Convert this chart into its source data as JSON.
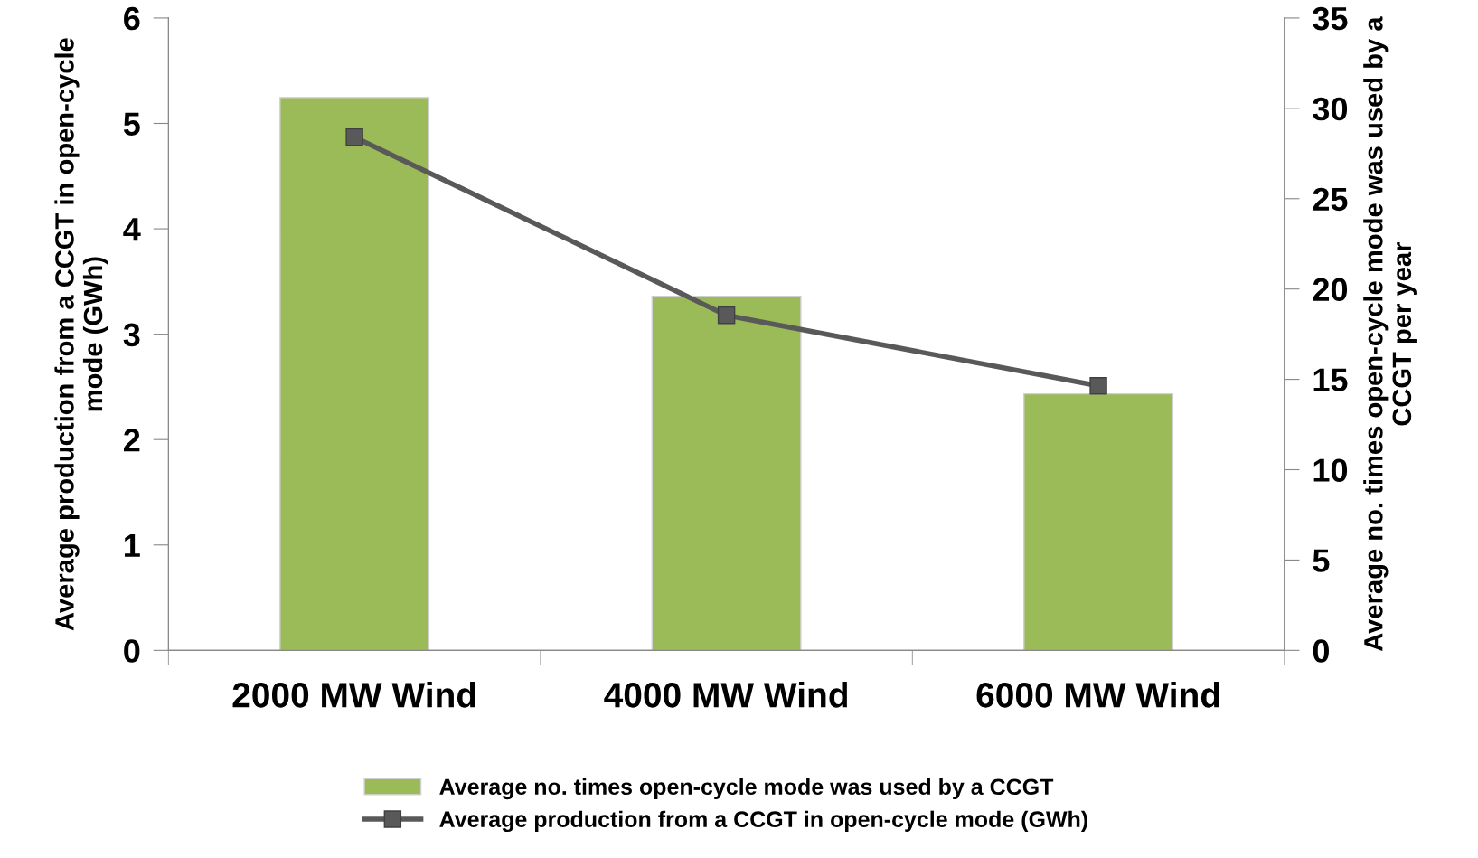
{
  "chart_data": {
    "type": "bar",
    "categories": [
      "2000 MW Wind",
      "4000 MW Wind",
      "6000 MW Wind"
    ],
    "ylabel": "Average production from a CCGT in open-cycle mode (GWh)",
    "y2label": "Average no. times open-cycle mode was used by a CCGT per year",
    "ylim": [
      0,
      6
    ],
    "yticks": [
      0,
      1,
      2,
      3,
      4,
      5,
      6
    ],
    "y2lim": [
      0,
      35
    ],
    "y2ticks": [
      0,
      5,
      10,
      15,
      20,
      25,
      30,
      35
    ],
    "series": [
      {
        "name": "Average no. times open-cycle mode was used by a CCGT",
        "axis": "y2",
        "color": "#9bbb59",
        "values": [
          30.6,
          19.6,
          14.2
        ]
      },
      {
        "name": "Average production from a CCGT in open-cycle mode (GWh)",
        "type": "line",
        "axis": "y",
        "color": "#595959",
        "marker": "square",
        "values": [
          4.87,
          3.18,
          2.51
        ]
      }
    ],
    "grid": false,
    "legend": "bottom"
  }
}
